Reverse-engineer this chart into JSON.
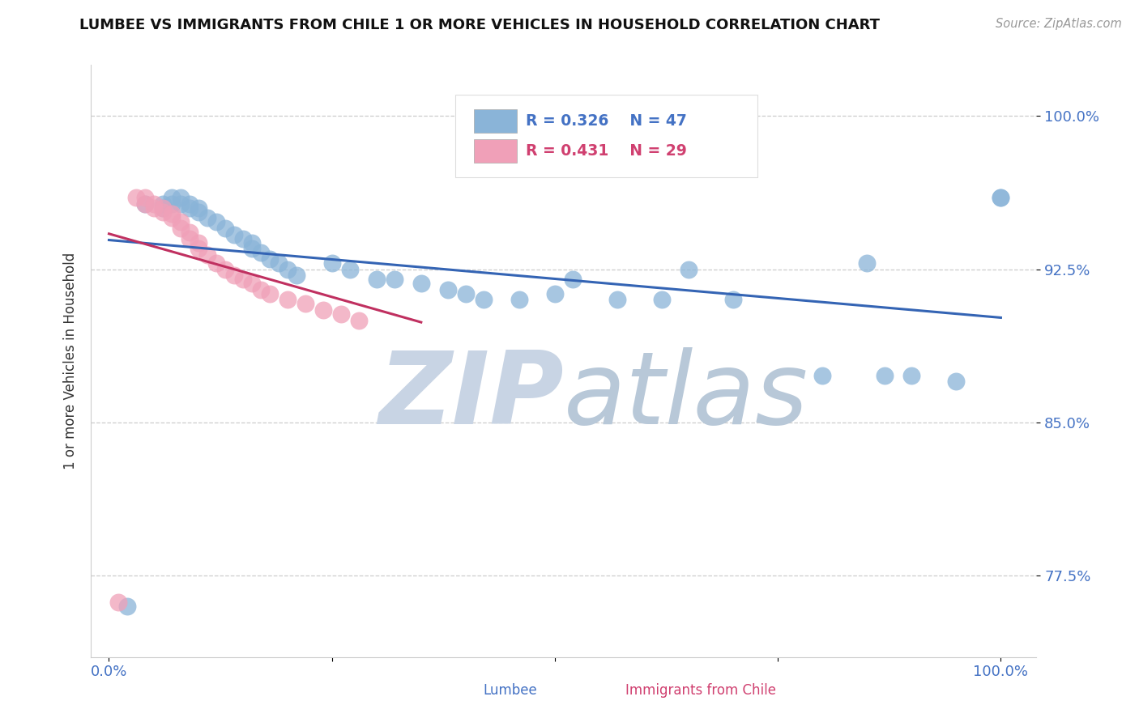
{
  "title": "LUMBEE VS IMMIGRANTS FROM CHILE 1 OR MORE VEHICLES IN HOUSEHOLD CORRELATION CHART",
  "source": "Source: ZipAtlas.com",
  "xlabel_lumbee": "Lumbee",
  "xlabel_chile": "Immigrants from Chile",
  "ylabel": "1 or more Vehicles in Household",
  "xlim": [
    -0.02,
    1.04
  ],
  "ylim": [
    0.735,
    1.025
  ],
  "ytick_positions": [
    0.775,
    0.85,
    0.925,
    1.0
  ],
  "ytick_labels": [
    "77.5%",
    "85.0%",
    "92.5%",
    "100.0%"
  ],
  "xtick_positions": [
    0.0,
    0.25,
    0.5,
    0.75,
    1.0
  ],
  "xtick_labels": [
    "0.0%",
    "",
    "",
    "",
    "100.0%"
  ],
  "lumbee_r": 0.326,
  "lumbee_n": 47,
  "chile_r": 0.431,
  "chile_n": 29,
  "lumbee_color": "#8ab4d8",
  "chile_color": "#f0a0b8",
  "lumbee_line_color": "#3464b4",
  "chile_line_color": "#c03060",
  "title_color": "#111111",
  "tick_label_color": "#4472c4",
  "source_color": "#999999",
  "grid_color": "#cccccc",
  "watermark_color_zip": "#c8d4e4",
  "watermark_color_atlas": "#b8c8d8",
  "lumbee_x": [
    0.02,
    0.04,
    0.05,
    0.06,
    0.06,
    0.07,
    0.07,
    0.08,
    0.08,
    0.09,
    0.1,
    0.1,
    0.11,
    0.11,
    0.12,
    0.13,
    0.14,
    0.14,
    0.15,
    0.16,
    0.17,
    0.18,
    0.19,
    0.2,
    0.22,
    0.24,
    0.26,
    0.28,
    0.3,
    0.32,
    0.35,
    0.38,
    0.4,
    0.43,
    0.47,
    0.5,
    0.55,
    0.6,
    0.65,
    0.68,
    0.72,
    0.78,
    0.85,
    0.88,
    0.9,
    0.95,
    1.0
  ],
  "lumbee_y": [
    0.76,
    0.96,
    0.957,
    0.96,
    0.957,
    0.957,
    0.955,
    0.955,
    0.953,
    0.95,
    0.948,
    0.945,
    0.943,
    0.94,
    0.937,
    0.933,
    0.93,
    0.928,
    0.928,
    0.925,
    0.923,
    0.92,
    0.918,
    0.915,
    0.913,
    0.928,
    0.928,
    0.923,
    0.92,
    0.918,
    0.915,
    0.913,
    0.91,
    0.908,
    0.913,
    0.92,
    0.91,
    0.91,
    0.91,
    0.925,
    0.873,
    0.873,
    0.93,
    0.873,
    0.873,
    0.87,
    0.96
  ],
  "chile_x": [
    0.01,
    0.03,
    0.04,
    0.04,
    0.05,
    0.05,
    0.06,
    0.06,
    0.07,
    0.07,
    0.08,
    0.08,
    0.09,
    0.09,
    0.1,
    0.1,
    0.11,
    0.11,
    0.12,
    0.13,
    0.14,
    0.15,
    0.16,
    0.17,
    0.18,
    0.19,
    0.2,
    0.22,
    0.25
  ],
  "chile_y": [
    0.76,
    0.96,
    0.96,
    0.958,
    0.957,
    0.955,
    0.955,
    0.953,
    0.952,
    0.95,
    0.948,
    0.945,
    0.943,
    0.94,
    0.938,
    0.935,
    0.932,
    0.928,
    0.925,
    0.922,
    0.92,
    0.918,
    0.915,
    0.913,
    0.91,
    0.908,
    0.905,
    0.903,
    0.9
  ]
}
